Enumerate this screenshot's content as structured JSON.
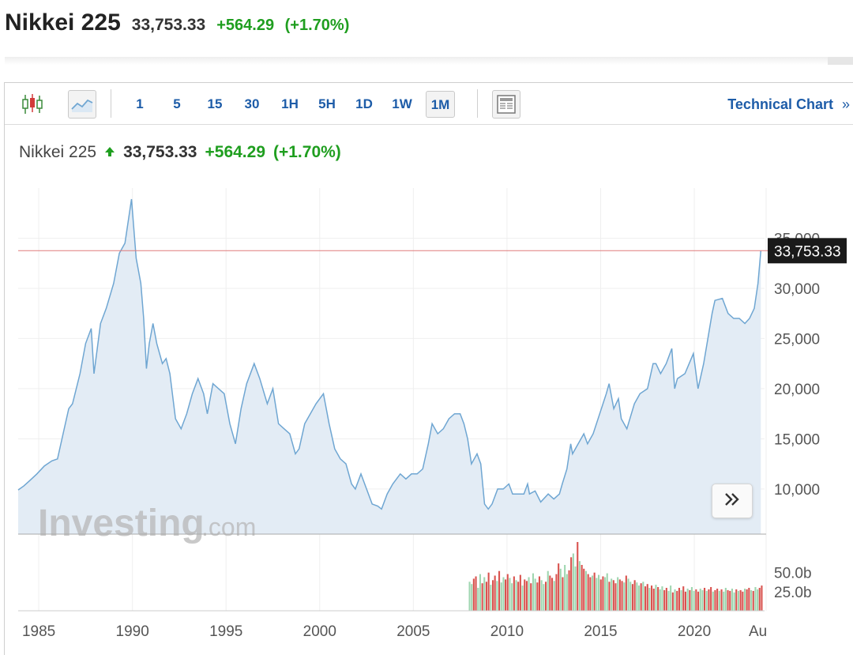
{
  "header": {
    "name": "Nikkei 225",
    "price": "33,753.33",
    "change": "+564.29",
    "change_pct": "(+1.70%)"
  },
  "toolbar": {
    "candle_icon": "candlestick-icon",
    "line_icon": "line-chart-icon",
    "timeframes": [
      "1",
      "5",
      "15",
      "30",
      "1H",
      "5H",
      "1D",
      "1W",
      "1M"
    ],
    "active_timeframe": "1M",
    "layout_icon": "table-layout-icon",
    "technical_label": "Technical Chart",
    "technical_arrow": "»"
  },
  "quote": {
    "name": "Nikkei 225",
    "price": "33,753.33",
    "change": "+564.29",
    "change_pct": "(+1.70%)",
    "direction_icon": "up-arrow-icon"
  },
  "watermark": {
    "brand": "Investing",
    "suffix": ".com"
  },
  "scroll_button": {
    "icon": "double-chevron-right-icon",
    "glyph": "»"
  },
  "colors": {
    "line": "#6fa6d2",
    "area": "#e3ecf5",
    "up": "#1f9e1f",
    "price_line": "#e07a7a",
    "volume_up": "#9fd6b0",
    "volume_down": "#d9534f",
    "label_bg": "#1a1a1a"
  },
  "chart_data": {
    "type": "area",
    "title": "Nikkei 225",
    "x_ticks": [
      "1985",
      "1990",
      "1995",
      "2000",
      "2005",
      "2010",
      "2015",
      "2020",
      "Au"
    ],
    "y_ticks": [
      "35,000",
      "30,000",
      "25,000",
      "20,000",
      "15,000",
      "10,000"
    ],
    "volume_ticks": [
      "50.0b",
      "25.0b"
    ],
    "last_price": 33753.33,
    "last_price_label": "33,753.33",
    "xlim": [
      1983.9,
      2023.75
    ],
    "ylim": [
      5500,
      40000
    ],
    "volume_ylim": [
      0,
      90
    ],
    "series": [
      {
        "name": "Nikkei 225",
        "x": [
          1983.9,
          1984.2,
          1984.5,
          1984.9,
          1985.3,
          1985.7,
          1986.0,
          1986.3,
          1986.6,
          1986.8,
          1987.2,
          1987.5,
          1987.8,
          1987.95,
          1988.3,
          1988.6,
          1989.0,
          1989.3,
          1989.6,
          1989.95,
          1990.2,
          1990.45,
          1990.6,
          1990.75,
          1990.9,
          1991.1,
          1991.3,
          1991.6,
          1991.8,
          1992.0,
          1992.3,
          1992.6,
          1992.9,
          1993.2,
          1993.5,
          1993.8,
          1994.0,
          1994.3,
          1994.6,
          1994.9,
          1995.2,
          1995.5,
          1995.8,
          1996.1,
          1996.5,
          1996.8,
          1997.2,
          1997.5,
          1997.8,
          1998.1,
          1998.4,
          1998.7,
          1998.9,
          1999.2,
          1999.5,
          1999.8,
          2000.2,
          2000.5,
          2000.8,
          2001.1,
          2001.4,
          2001.7,
          2001.9,
          2002.2,
          2002.5,
          2002.8,
          2003.1,
          2003.3,
          2003.6,
          2003.9,
          2004.3,
          2004.6,
          2004.9,
          2005.2,
          2005.5,
          2005.8,
          2006.0,
          2006.3,
          2006.6,
          2006.9,
          2007.2,
          2007.5,
          2007.7,
          2007.9,
          2008.1,
          2008.4,
          2008.6,
          2008.8,
          2009.0,
          2009.2,
          2009.5,
          2009.8,
          2010.1,
          2010.3,
          2010.6,
          2010.9,
          2011.1,
          2011.2,
          2011.5,
          2011.8,
          2012.2,
          2012.5,
          2012.8,
          2012.95,
          2013.2,
          2013.4,
          2013.5,
          2013.8,
          2014.1,
          2014.3,
          2014.6,
          2014.95,
          2015.3,
          2015.45,
          2015.7,
          2015.95,
          2016.1,
          2016.4,
          2016.8,
          2017.1,
          2017.5,
          2017.8,
          2017.95,
          2018.2,
          2018.5,
          2018.8,
          2018.95,
          2019.1,
          2019.5,
          2019.95,
          2020.2,
          2020.5,
          2020.95,
          2021.1,
          2021.5,
          2021.8,
          2022.1,
          2022.4,
          2022.7,
          2022.95,
          2023.2,
          2023.4,
          2023.55
        ],
        "y": [
          9900,
          10300,
          10800,
          11500,
          12300,
          12800,
          13000,
          15500,
          18000,
          18500,
          21500,
          24500,
          26000,
          21500,
          26500,
          28000,
          30500,
          33500,
          34500,
          38900,
          33000,
          30500,
          27000,
          22000,
          24500,
          26500,
          24500,
          22500,
          23000,
          21500,
          17000,
          16000,
          17500,
          19500,
          21000,
          19500,
          17500,
          20500,
          20000,
          19500,
          16500,
          14500,
          18000,
          20500,
          22500,
          21000,
          18500,
          20000,
          16500,
          16000,
          15500,
          13500,
          14000,
          16500,
          17500,
          18500,
          19500,
          16500,
          14000,
          13000,
          12500,
          10500,
          10000,
          11500,
          10000,
          8500,
          8300,
          8000,
          9500,
          10500,
          11500,
          11000,
          11500,
          11500,
          12000,
          14500,
          16500,
          15500,
          16000,
          17000,
          17500,
          17500,
          16500,
          15000,
          12500,
          13500,
          12500,
          8500,
          8000,
          8500,
          10000,
          10000,
          10500,
          9500,
          9500,
          9500,
          10500,
          9500,
          9800,
          8700,
          9500,
          9000,
          9500,
          10500,
          12000,
          14500,
          13500,
          14500,
          15500,
          14500,
          15500,
          17500,
          19500,
          20500,
          18000,
          19000,
          17000,
          16000,
          18500,
          19500,
          20000,
          22500,
          22500,
          21500,
          22500,
          24000,
          20000,
          21000,
          21500,
          23500,
          20000,
          22500,
          27500,
          28800,
          29000,
          27500,
          27000,
          27000,
          26500,
          27000,
          28000,
          30500,
          33753
        ]
      }
    ],
    "volume": {
      "x_start": 2008.0,
      "x_end": 2023.6,
      "values": [
        38,
        35,
        42,
        45,
        30,
        48,
        36,
        44,
        38,
        50,
        34,
        40,
        46,
        39,
        52,
        37,
        44,
        41,
        48,
        43,
        36,
        45,
        40,
        38,
        47,
        33,
        41,
        39,
        44,
        36,
        49,
        42,
        37,
        45,
        40,
        35,
        38,
        52,
        46,
        43,
        39,
        48,
        62,
        55,
        44,
        60,
        48,
        53,
        70,
        75,
        58,
        90,
        65,
        60,
        55,
        52,
        48,
        44,
        46,
        50,
        43,
        47,
        41,
        45,
        44,
        49,
        38,
        42,
        40,
        36,
        44,
        41,
        39,
        37,
        46,
        42,
        38,
        35,
        40,
        37,
        33,
        36,
        38,
        32,
        35,
        30,
        33,
        29,
        34,
        31,
        28,
        32,
        27,
        30,
        26,
        33,
        24,
        28,
        26,
        30,
        27,
        32,
        25,
        29,
        27,
        31,
        26,
        28,
        25,
        29,
        27,
        30,
        26,
        28,
        31,
        25,
        27,
        29,
        26,
        28,
        25,
        30,
        27,
        26,
        29,
        24,
        28,
        26,
        27,
        25,
        29,
        28,
        30,
        27,
        26,
        31,
        28,
        30,
        33
      ]
    }
  }
}
